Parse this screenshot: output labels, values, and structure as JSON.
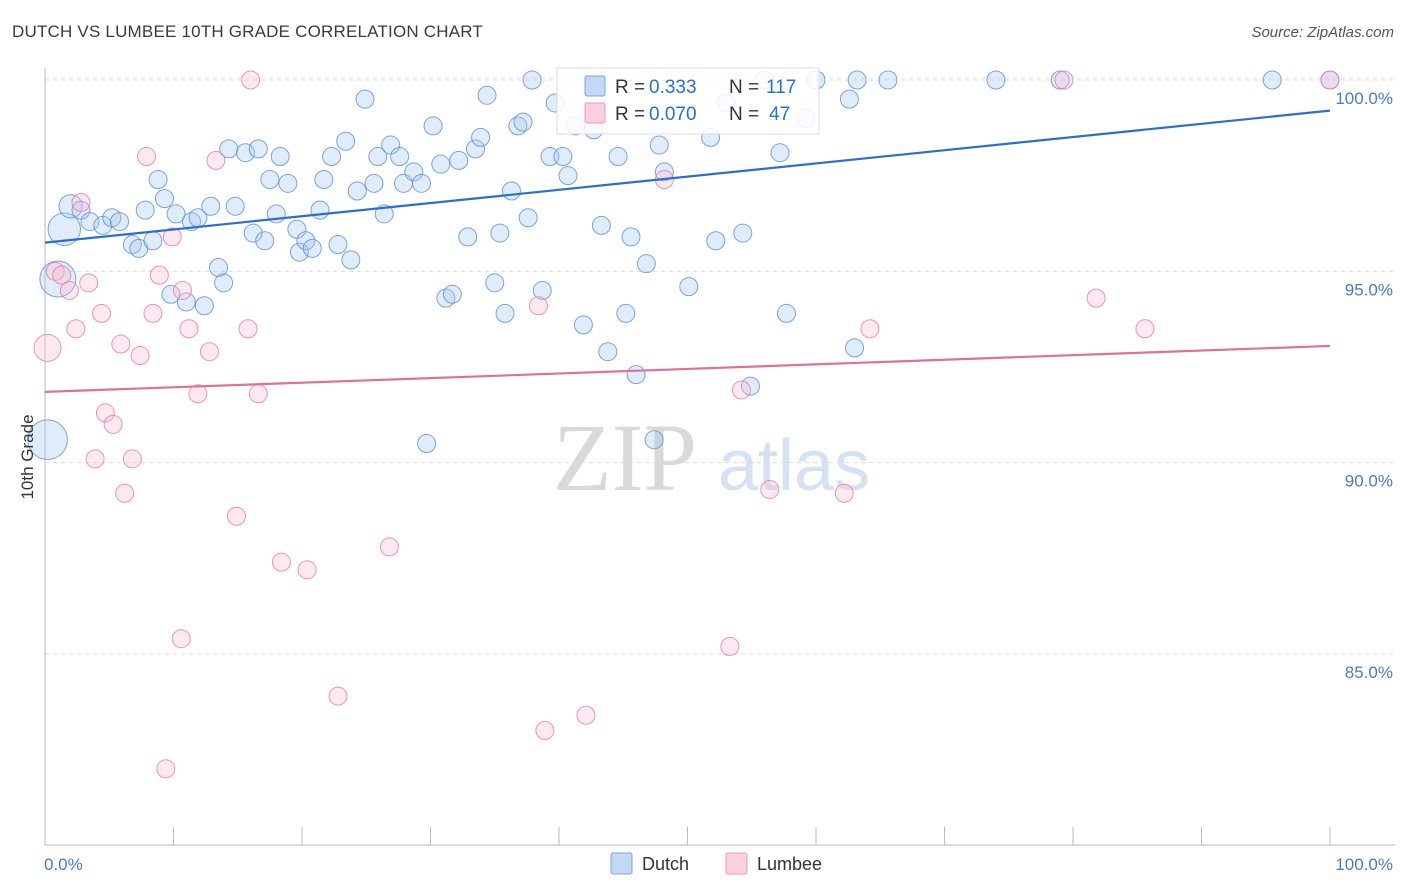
{
  "title": "DUTCH VS LUMBEE 10TH GRADE CORRELATION CHART",
  "source": "Source: ZipAtlas.com",
  "watermark": {
    "zip": "ZIP",
    "atlas": "atlas"
  },
  "legend": {
    "rows": [
      {
        "r_label": "R =",
        "r_value": "0.333",
        "n_label": "N =",
        "n_value": "117",
        "color": "#a8c8f0"
      },
      {
        "r_label": "R =",
        "r_value": "0.070",
        "n_label": "N =",
        "n_value": "47",
        "color": "#f5b8cc"
      }
    ]
  },
  "bottom_legend": [
    "Dutch",
    "Lumbee"
  ],
  "chart_data": {
    "type": "scatter",
    "title": "DUTCH VS LUMBEE 10TH GRADE CORRELATION CHART",
    "xlabel": "",
    "ylabel": "10th Grade",
    "xlim": [
      0,
      100
    ],
    "ylim": [
      80.5,
      100.8
    ],
    "x_tick_labels": [
      "0.0%",
      "100.0%"
    ],
    "y_ticks": [
      85,
      90,
      95,
      100
    ],
    "y_tick_labels": [
      "85.0%",
      "90.0%",
      "95.0%",
      "100.0%"
    ],
    "grid": "horizontal dashed",
    "colors": {
      "Dutch": "#4a86d8",
      "Lumbee": "#e87aa0",
      "Dutch_line": "#2a6fcf",
      "Lumbee_line": "#e0709a"
    },
    "series": [
      {
        "name": "Dutch",
        "trend": {
          "x": [
            0,
            100
          ],
          "y": [
            95.75,
            99.2
          ]
        },
        "points": [
          [
            1.5,
            96.1,
            1.8
          ],
          [
            1.0,
            94.8,
            2.0
          ],
          [
            0.2,
            90.6,
            2.2
          ],
          [
            2.0,
            96.7,
            1.3
          ],
          [
            2.8,
            96.6,
            1.0
          ],
          [
            3.5,
            96.3,
            1.0
          ],
          [
            4.5,
            96.2,
            1.0
          ],
          [
            5.2,
            96.4,
            1.0
          ],
          [
            5.8,
            96.3,
            1.0
          ],
          [
            6.8,
            95.7,
            1.0
          ],
          [
            7.3,
            95.6,
            1.0
          ],
          [
            7.8,
            96.6,
            1.0
          ],
          [
            8.4,
            95.8,
            1.0
          ],
          [
            8.8,
            97.4,
            1.0
          ],
          [
            9.3,
            96.9,
            1.0
          ],
          [
            9.8,
            94.4,
            1.0
          ],
          [
            10.2,
            96.5,
            1.0
          ],
          [
            11.0,
            94.2,
            1.0
          ],
          [
            11.4,
            96.3,
            1.0
          ],
          [
            11.9,
            96.4,
            1.0
          ],
          [
            12.4,
            94.1,
            1.0
          ],
          [
            12.9,
            96.7,
            1.0
          ],
          [
            13.5,
            95.1,
            1.0
          ],
          [
            13.9,
            94.7,
            1.0
          ],
          [
            14.3,
            98.2,
            1.0
          ],
          [
            14.8,
            96.7,
            1.0
          ],
          [
            15.6,
            98.1,
            1.0
          ],
          [
            16.2,
            96.0,
            1.0
          ],
          [
            16.6,
            98.2,
            1.0
          ],
          [
            17.1,
            95.8,
            1.0
          ],
          [
            17.5,
            97.4,
            1.0
          ],
          [
            18.0,
            96.5,
            1.0
          ],
          [
            18.3,
            98.0,
            1.0
          ],
          [
            18.9,
            97.3,
            1.0
          ],
          [
            19.6,
            96.1,
            1.0
          ],
          [
            19.8,
            95.5,
            1.0
          ],
          [
            20.3,
            95.8,
            1.0
          ],
          [
            20.8,
            95.6,
            1.0
          ],
          [
            21.4,
            96.6,
            1.0
          ],
          [
            21.7,
            97.4,
            1.0
          ],
          [
            22.3,
            98.0,
            1.0
          ],
          [
            22.8,
            95.7,
            1.0
          ],
          [
            23.4,
            98.4,
            1.0
          ],
          [
            23.8,
            95.3,
            1.0
          ],
          [
            24.3,
            97.1,
            1.0
          ],
          [
            24.9,
            99.5,
            1.0
          ],
          [
            25.6,
            97.3,
            1.0
          ],
          [
            25.9,
            98.0,
            1.0
          ],
          [
            26.4,
            96.5,
            1.0
          ],
          [
            26.9,
            98.3,
            1.0
          ],
          [
            27.6,
            98.0,
            1.0
          ],
          [
            27.9,
            97.3,
            1.0
          ],
          [
            28.7,
            97.6,
            1.0
          ],
          [
            29.3,
            97.3,
            1.0
          ],
          [
            29.7,
            90.5,
            1.0
          ],
          [
            30.2,
            98.8,
            1.0
          ],
          [
            30.8,
            97.8,
            1.0
          ],
          [
            31.2,
            94.3,
            1.0
          ],
          [
            31.7,
            94.4,
            1.0
          ],
          [
            32.2,
            97.9,
            1.0
          ],
          [
            32.9,
            95.9,
            1.0
          ],
          [
            33.5,
            98.2,
            1.0
          ],
          [
            33.9,
            98.5,
            1.0
          ],
          [
            34.4,
            99.6,
            1.0
          ],
          [
            35.0,
            94.7,
            1.0
          ],
          [
            35.4,
            96.0,
            1.0
          ],
          [
            35.8,
            93.9,
            1.0
          ],
          [
            36.3,
            97.1,
            1.0
          ],
          [
            36.8,
            98.8,
            1.0
          ],
          [
            37.2,
            98.9,
            1.0
          ],
          [
            37.6,
            96.4,
            1.0
          ],
          [
            37.9,
            100.0,
            1.0
          ],
          [
            38.7,
            94.5,
            1.0
          ],
          [
            39.3,
            98.0,
            1.0
          ],
          [
            39.7,
            99.4,
            1.0
          ],
          [
            40.3,
            98.0,
            1.0
          ],
          [
            40.7,
            97.5,
            1.0
          ],
          [
            41.3,
            98.8,
            1.0
          ],
          [
            41.9,
            93.6,
            1.0
          ],
          [
            42.7,
            98.7,
            1.0
          ],
          [
            43.3,
            96.2,
            1.0
          ],
          [
            43.8,
            92.9,
            1.0
          ],
          [
            44.6,
            98.0,
            1.0
          ],
          [
            45.2,
            93.9,
            1.0
          ],
          [
            45.6,
            95.9,
            1.0
          ],
          [
            46.0,
            92.3,
            1.0
          ],
          [
            46.8,
            95.2,
            1.0
          ],
          [
            47.4,
            90.6,
            1.0
          ],
          [
            47.8,
            98.3,
            1.0
          ],
          [
            48.2,
            97.6,
            1.0
          ],
          [
            50.1,
            94.6,
            1.0
          ],
          [
            51.8,
            98.5,
            1.0
          ],
          [
            52.2,
            95.8,
            1.0
          ],
          [
            53.0,
            99.4,
            1.0
          ],
          [
            54.3,
            96.0,
            1.0
          ],
          [
            54.9,
            92.0,
            1.0
          ],
          [
            56.0,
            100.0,
            1.0
          ],
          [
            57.2,
            98.1,
            1.0
          ],
          [
            57.7,
            93.9,
            1.0
          ],
          [
            59.2,
            99.0,
            1.0
          ],
          [
            60.0,
            100.0,
            1.0
          ],
          [
            62.6,
            99.5,
            1.0
          ],
          [
            63.0,
            93.0,
            1.0
          ],
          [
            63.2,
            100.0,
            1.0
          ],
          [
            65.6,
            100.0,
            1.0
          ],
          [
            74.0,
            100.0,
            1.0
          ],
          [
            79.0,
            100.0,
            1.0
          ],
          [
            95.5,
            100.0,
            1.0
          ],
          [
            100.0,
            100.0,
            1.0
          ]
        ]
      },
      {
        "name": "Lumbee",
        "trend": {
          "x": [
            0,
            100
          ],
          "y": [
            91.85,
            93.05
          ]
        },
        "points": [
          [
            0.2,
            93.0,
            1.5
          ],
          [
            0.8,
            95.0,
            1.0
          ],
          [
            1.3,
            94.9,
            1.0
          ],
          [
            1.9,
            94.5,
            1.0
          ],
          [
            2.4,
            93.5,
            1.0
          ],
          [
            2.8,
            96.8,
            1.0
          ],
          [
            3.4,
            94.7,
            1.0
          ],
          [
            3.9,
            90.1,
            1.0
          ],
          [
            4.4,
            93.9,
            1.0
          ],
          [
            4.7,
            91.3,
            1.0
          ],
          [
            5.3,
            91.0,
            1.0
          ],
          [
            5.9,
            93.1,
            1.0
          ],
          [
            6.2,
            89.2,
            1.0
          ],
          [
            6.8,
            90.1,
            1.0
          ],
          [
            7.4,
            92.8,
            1.0
          ],
          [
            7.9,
            98.0,
            1.0
          ],
          [
            8.4,
            93.9,
            1.0
          ],
          [
            8.9,
            94.9,
            1.0
          ],
          [
            9.4,
            82.0,
            1.0
          ],
          [
            9.9,
            95.9,
            1.0
          ],
          [
            10.6,
            85.4,
            1.0
          ],
          [
            10.7,
            94.5,
            1.0
          ],
          [
            11.2,
            93.5,
            1.0
          ],
          [
            11.9,
            91.8,
            1.0
          ],
          [
            12.8,
            92.9,
            1.0
          ],
          [
            13.3,
            97.9,
            1.0
          ],
          [
            14.9,
            88.6,
            1.0
          ],
          [
            15.8,
            93.5,
            1.0
          ],
          [
            16.0,
            100.0,
            1.0
          ],
          [
            16.6,
            91.8,
            1.0
          ],
          [
            18.4,
            87.4,
            1.0
          ],
          [
            20.4,
            87.2,
            1.0
          ],
          [
            22.8,
            83.9,
            1.0
          ],
          [
            26.8,
            87.8,
            1.0
          ],
          [
            38.4,
            94.1,
            1.0
          ],
          [
            38.9,
            83.0,
            1.0
          ],
          [
            42.1,
            83.4,
            1.0
          ],
          [
            48.2,
            97.4,
            1.0
          ],
          [
            53.3,
            85.2,
            1.0
          ],
          [
            54.2,
            91.9,
            1.0
          ],
          [
            56.4,
            89.3,
            1.0
          ],
          [
            62.2,
            89.2,
            1.0
          ],
          [
            64.2,
            93.5,
            1.0
          ],
          [
            79.3,
            100.0,
            1.0
          ],
          [
            81.8,
            94.3,
            1.0
          ],
          [
            85.6,
            93.5,
            1.0
          ],
          [
            100.0,
            100.0,
            1.0
          ]
        ]
      }
    ]
  }
}
